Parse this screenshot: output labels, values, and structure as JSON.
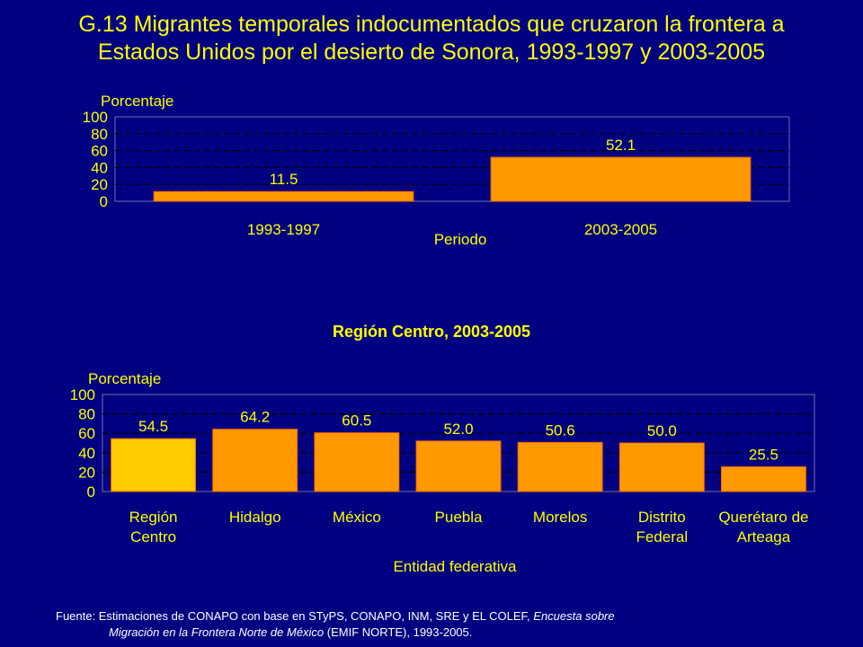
{
  "title_line1": "G.13 Migrantes temporales indocumentados que cruzaron la frontera a",
  "title_line2": "Estados Unidos por el desierto de Sonora, 1993-1997 y 2003-2005",
  "colors": {
    "background": "#000080",
    "text_yellow": "#FFFF00",
    "bar_orange": "#FF9900",
    "bar_highlight": "#FFCC00",
    "bar_outline": "#FF6600",
    "grid": "#000000"
  },
  "chart_data": [
    {
      "type": "bar",
      "title": "",
      "ylabel": "Porcentaje",
      "xlabel": "Periodo",
      "categories": [
        "1993-1997",
        "2003-2005"
      ],
      "values": [
        11.5,
        52.1
      ],
      "data_labels": [
        "11.5",
        "52.1"
      ],
      "yticks": [
        "100",
        "80",
        "60",
        "40",
        "20",
        "0"
      ],
      "ylim": [
        0,
        100
      ],
      "grid": "dashed horizontal"
    },
    {
      "type": "bar",
      "title": "Región Centro, 2003-2005",
      "ylabel": "Porcentaje",
      "xlabel": "Entidad federativa",
      "categories": [
        [
          "Región",
          "Centro"
        ],
        [
          "Hidalgo"
        ],
        [
          "México"
        ],
        [
          "Puebla"
        ],
        [
          "Morelos"
        ],
        [
          "Distrito",
          "Federal"
        ],
        [
          "Querétaro de",
          "Arteaga"
        ]
      ],
      "values": [
        54.5,
        64.2,
        60.5,
        52.0,
        50.6,
        50.0,
        25.5
      ],
      "data_labels": [
        "54.5",
        "64.2",
        "60.5",
        "52.0",
        "50.6",
        "50.0",
        "25.5"
      ],
      "bar_colors": [
        "#FFCC00",
        "#FF9900",
        "#FF9900",
        "#FF9900",
        "#FF9900",
        "#FF9900",
        "#FF9900"
      ],
      "yticks": [
        "100",
        "80",
        "60",
        "40",
        "20",
        "0"
      ],
      "ylim": [
        0,
        100
      ],
      "grid": "dashed horizontal"
    }
  ],
  "footer": {
    "prefix": "Fuente: Estimaciones de CONAPO con base en STyPS, CONAPO, INM, SRE y EL COLEF, ",
    "source_italic_1": "Encuesta sobre",
    "source_italic_2": "Migración en la Frontera Norte de México",
    "suffix": " (EMIF NORTE), 1993-2005."
  }
}
